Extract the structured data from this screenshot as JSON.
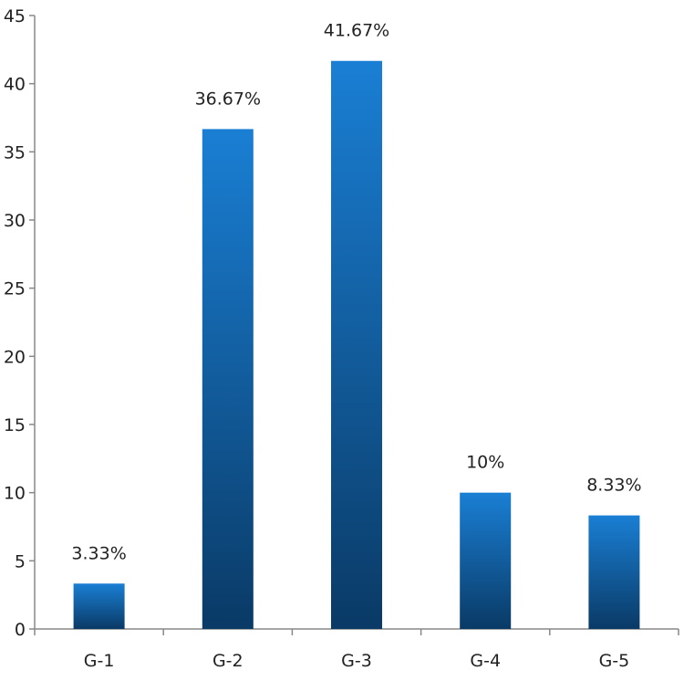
{
  "chart_data": {
    "type": "bar",
    "title": "",
    "xlabel": "",
    "ylabel": "",
    "categories": [
      "G-1",
      "G-2",
      "G-3",
      "G-4",
      "G-5"
    ],
    "values": [
      3.33,
      36.67,
      41.67,
      10,
      8.33
    ],
    "data_labels": [
      "3.33%",
      "36.67%",
      "41.67%",
      "10%",
      "8.33%"
    ],
    "ylim": [
      0,
      45
    ],
    "y_ticks": [
      "0",
      "5",
      "10",
      "15",
      "20",
      "25",
      "30",
      "35",
      "40",
      "45"
    ],
    "grid": false,
    "legend": "none",
    "bar_color_top": "#1a7fd4",
    "bar_color_bottom": "#0a3a66"
  }
}
